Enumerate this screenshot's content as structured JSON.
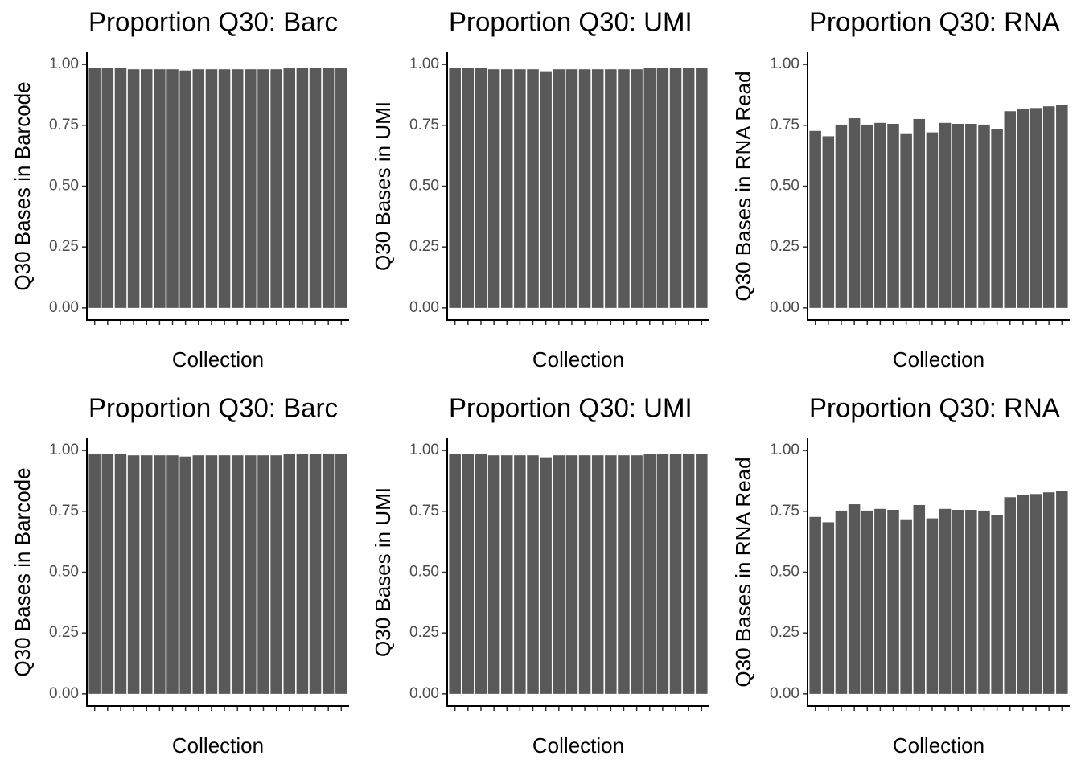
{
  "chart_data": [
    {
      "type": "bar",
      "title": "Proportion Q30: Barc",
      "x_label": "Collection",
      "y_label": "Q30 Bases in Barcode",
      "categories": [
        null,
        null,
        null,
        null,
        null,
        null,
        null,
        null,
        null,
        null,
        null,
        null,
        null,
        null,
        null,
        null,
        null,
        null,
        null,
        null
      ],
      "values": [
        0.985,
        0.985,
        0.985,
        0.98,
        0.98,
        0.98,
        0.98,
        0.975,
        0.98,
        0.98,
        0.98,
        0.98,
        0.98,
        0.98,
        0.98,
        0.985,
        0.985,
        0.985,
        0.985,
        0.985
      ],
      "color": "#595959",
      "ylim": [
        -0.05,
        1.05
      ],
      "yticks": [
        {
          "value": 0,
          "label": "0.00"
        },
        {
          "value": 0.25,
          "label": "0.25"
        },
        {
          "value": 0.5,
          "label": "0.50"
        },
        {
          "value": 0.75,
          "label": "0.75"
        },
        {
          "value": 1,
          "label": "1.00"
        }
      ]
    },
    {
      "type": "bar",
      "title": "Proportion Q30: UMI",
      "x_label": "Collection",
      "y_label": "Q30 Bases in UMI",
      "categories": [
        null,
        null,
        null,
        null,
        null,
        null,
        null,
        null,
        null,
        null,
        null,
        null,
        null,
        null,
        null,
        null,
        null,
        null,
        null,
        null
      ],
      "values": [
        0.985,
        0.985,
        0.985,
        0.98,
        0.98,
        0.98,
        0.98,
        0.972,
        0.98,
        0.98,
        0.98,
        0.98,
        0.98,
        0.98,
        0.98,
        0.985,
        0.985,
        0.985,
        0.985,
        0.985
      ],
      "color": "#595959",
      "ylim": [
        -0.05,
        1.05
      ],
      "yticks": [
        {
          "value": 0,
          "label": "0.00"
        },
        {
          "value": 0.25,
          "label": "0.25"
        },
        {
          "value": 0.5,
          "label": "0.50"
        },
        {
          "value": 0.75,
          "label": "0.75"
        },
        {
          "value": 1,
          "label": "1.00"
        }
      ]
    },
    {
      "type": "bar",
      "title": "Proportion Q30: RNA",
      "x_label": "Collection",
      "y_label": "Q30 Bases in RNA Read",
      "categories": [
        null,
        null,
        null,
        null,
        null,
        null,
        null,
        null,
        null,
        null,
        null,
        null,
        null,
        null,
        null,
        null,
        null,
        null,
        null,
        null
      ],
      "values": [
        0.727,
        0.705,
        0.753,
        0.779,
        0.753,
        0.76,
        0.756,
        0.714,
        0.776,
        0.721,
        0.76,
        0.756,
        0.756,
        0.753,
        0.734,
        0.808,
        0.818,
        0.821,
        0.828,
        0.834
      ],
      "color": "#595959",
      "ylim": [
        -0.05,
        1.05
      ],
      "yticks": [
        {
          "value": 0,
          "label": "0.00"
        },
        {
          "value": 0.25,
          "label": "0.25"
        },
        {
          "value": 0.5,
          "label": "0.50"
        },
        {
          "value": 0.75,
          "label": "0.75"
        },
        {
          "value": 1,
          "label": "1.00"
        }
      ]
    },
    {
      "type": "bar",
      "title": "Proportion Q30: Barc",
      "x_label": "Collection",
      "y_label": "Q30 Bases in Barcode",
      "categories": [
        null,
        null,
        null,
        null,
        null,
        null,
        null,
        null,
        null,
        null,
        null,
        null,
        null,
        null,
        null,
        null,
        null,
        null,
        null,
        null
      ],
      "values": [
        0.985,
        0.985,
        0.985,
        0.98,
        0.98,
        0.98,
        0.98,
        0.975,
        0.98,
        0.98,
        0.98,
        0.98,
        0.98,
        0.98,
        0.98,
        0.985,
        0.985,
        0.985,
        0.985,
        0.985
      ],
      "color": "#595959",
      "ylim": [
        -0.05,
        1.05
      ],
      "yticks": [
        {
          "value": 0,
          "label": "0.00"
        },
        {
          "value": 0.25,
          "label": "0.25"
        },
        {
          "value": 0.5,
          "label": "0.50"
        },
        {
          "value": 0.75,
          "label": "0.75"
        },
        {
          "value": 1,
          "label": "1.00"
        }
      ]
    },
    {
      "type": "bar",
      "title": "Proportion Q30: UMI",
      "x_label": "Collection",
      "y_label": "Q30 Bases in UMI",
      "categories": [
        null,
        null,
        null,
        null,
        null,
        null,
        null,
        null,
        null,
        null,
        null,
        null,
        null,
        null,
        null,
        null,
        null,
        null,
        null,
        null
      ],
      "values": [
        0.985,
        0.985,
        0.985,
        0.98,
        0.98,
        0.98,
        0.98,
        0.972,
        0.98,
        0.98,
        0.98,
        0.98,
        0.98,
        0.98,
        0.98,
        0.985,
        0.985,
        0.985,
        0.985,
        0.985
      ],
      "color": "#595959",
      "ylim": [
        -0.05,
        1.05
      ],
      "yticks": [
        {
          "value": 0,
          "label": "0.00"
        },
        {
          "value": 0.25,
          "label": "0.25"
        },
        {
          "value": 0.5,
          "label": "0.50"
        },
        {
          "value": 0.75,
          "label": "0.75"
        },
        {
          "value": 1,
          "label": "1.00"
        }
      ]
    },
    {
      "type": "bar",
      "title": "Proportion Q30: RNA",
      "x_label": "Collection",
      "y_label": "Q30 Bases in RNA Read",
      "categories": [
        null,
        null,
        null,
        null,
        null,
        null,
        null,
        null,
        null,
        null,
        null,
        null,
        null,
        null,
        null,
        null,
        null,
        null,
        null,
        null
      ],
      "values": [
        0.727,
        0.705,
        0.753,
        0.779,
        0.753,
        0.76,
        0.756,
        0.714,
        0.776,
        0.721,
        0.76,
        0.756,
        0.756,
        0.753,
        0.734,
        0.808,
        0.818,
        0.821,
        0.828,
        0.834
      ],
      "color": "#595959",
      "ylim": [
        -0.05,
        1.05
      ],
      "yticks": [
        {
          "value": 0,
          "label": "0.00"
        },
        {
          "value": 0.25,
          "label": "0.25"
        },
        {
          "value": 0.5,
          "label": "0.50"
        },
        {
          "value": 0.75,
          "label": "0.75"
        },
        {
          "value": 1,
          "label": "1.00"
        }
      ]
    }
  ]
}
